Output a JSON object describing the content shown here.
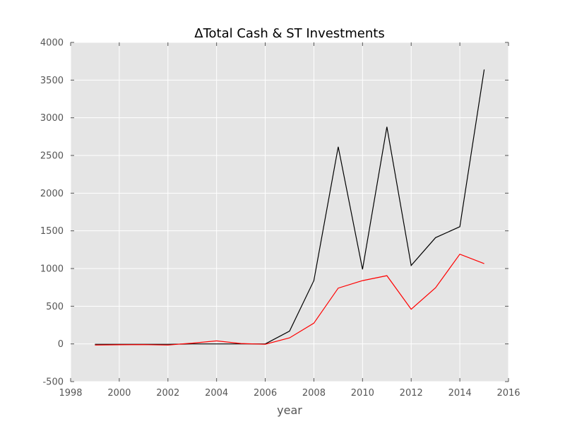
{
  "chart_data": {
    "type": "line",
    "title": "ΔTotal Cash & ST Investments",
    "xlabel": "year",
    "ylabel": "",
    "xlim": [
      1998,
      2016
    ],
    "ylim": [
      -500,
      4000
    ],
    "xticks": [
      "1998",
      "2000",
      "2002",
      "2004",
      "2006",
      "2008",
      "2010",
      "2012",
      "2014",
      "2016"
    ],
    "yticks": [
      "-500",
      "0",
      "500",
      "1000",
      "1500",
      "2000",
      "2500",
      "3000",
      "3500",
      "4000"
    ],
    "grid": true,
    "legend": "none",
    "colors": {
      "background": "#e5e5e5",
      "grid": "#ffffff",
      "series_1": "#000000",
      "series_2": "#ff0000"
    },
    "series": [
      {
        "color": "#000000",
        "x": [
          1999,
          2000,
          2001,
          2002,
          2003,
          2004,
          2005,
          2006,
          2007,
          2008,
          2009,
          2010,
          2011,
          2012,
          2013,
          2014,
          2015
        ],
        "values": [
          -5,
          -5,
          -5,
          -5,
          0,
          0,
          0,
          0,
          170,
          840,
          2615,
          990,
          2880,
          1040,
          1410,
          1555,
          3640
        ]
      },
      {
        "color": "#ff0000",
        "x": [
          1999,
          2000,
          2001,
          2002,
          2003,
          2004,
          2005,
          2006,
          2007,
          2008,
          2009,
          2010,
          2011,
          2012,
          2013,
          2014,
          2015
        ],
        "values": [
          -15,
          -12,
          -10,
          -15,
          10,
          40,
          5,
          -5,
          80,
          275,
          740,
          840,
          905,
          460,
          745,
          1190,
          1065
        ]
      }
    ]
  }
}
